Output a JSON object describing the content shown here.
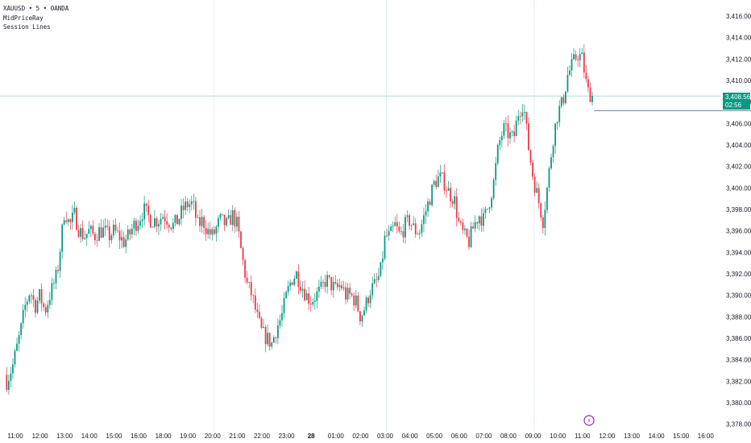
{
  "legend": {
    "symbol_line": "XAUUSD • 5 • OANDA",
    "indicator_1": "MidPriceRay",
    "indicator_2": "Session Lines"
  },
  "price_badge": {
    "price": "3,408.560",
    "countdown": "02:56"
  },
  "colors": {
    "up": "#089981",
    "down": "#f23645",
    "badge": "#089981",
    "crosshair": "#9fd8cf",
    "session_line": "#b7d5e8",
    "event_marker": "#9c27b0"
  },
  "event_marker": {
    "icon": "lightning-icon"
  },
  "chart_data": {
    "type": "candlestick",
    "y_axis": {
      "range": [
        3377,
        3417.5
      ],
      "ticks": [
        "3,378.000",
        "3,380.000",
        "3,382.000",
        "3,384.000",
        "3,386.000",
        "3,388.000",
        "3,390.000",
        "3,392.000",
        "3,394.000",
        "3,396.000",
        "3,398.000",
        "3,400.000",
        "3,402.000",
        "3,404.000",
        "3,406.000",
        "3,408.000",
        "3,410.000",
        "3,412.000",
        "3,414.000",
        "3,416.000"
      ]
    },
    "x_axis": {
      "ticks": [
        {
          "label": "11:00",
          "hour": 0,
          "bold": false
        },
        {
          "label": "12:00",
          "hour": 1,
          "bold": false
        },
        {
          "label": "13:00",
          "hour": 2,
          "bold": false
        },
        {
          "label": "14:00",
          "hour": 3,
          "bold": false
        },
        {
          "label": "15:00",
          "hour": 4,
          "bold": false
        },
        {
          "label": "16:00",
          "hour": 5,
          "bold": false
        },
        {
          "label": "18:00",
          "hour": 6,
          "bold": false
        },
        {
          "label": "19:00",
          "hour": 7,
          "bold": false
        },
        {
          "label": "20:00",
          "hour": 8,
          "bold": false
        },
        {
          "label": "21:00",
          "hour": 9,
          "bold": false
        },
        {
          "label": "22:00",
          "hour": 10,
          "bold": false
        },
        {
          "label": "23:00",
          "hour": 11,
          "bold": false
        },
        {
          "label": "28",
          "hour": 12,
          "bold": true
        },
        {
          "label": "01:00",
          "hour": 13,
          "bold": false
        },
        {
          "label": "02:00",
          "hour": 14,
          "bold": false
        },
        {
          "label": "03:00",
          "hour": 15,
          "bold": false
        },
        {
          "label": "04:00",
          "hour": 16,
          "bold": false
        },
        {
          "label": "05:00",
          "hour": 17,
          "bold": false
        },
        {
          "label": "06:00",
          "hour": 18,
          "bold": false
        },
        {
          "label": "07:00",
          "hour": 19,
          "bold": false
        },
        {
          "label": "08:00",
          "hour": 20,
          "bold": false
        },
        {
          "label": "09:00",
          "hour": 21,
          "bold": false
        },
        {
          "label": "10:00",
          "hour": 22,
          "bold": false
        },
        {
          "label": "11:00",
          "hour": 23,
          "bold": false
        },
        {
          "label": "12:00",
          "hour": 24,
          "bold": false
        },
        {
          "label": "13:00",
          "hour": 25,
          "bold": false
        },
        {
          "label": "14:00",
          "hour": 26,
          "bold": false
        },
        {
          "label": "15:00",
          "hour": 27,
          "bold": false
        },
        {
          "label": "16:00",
          "hour": 28,
          "bold": false
        }
      ]
    },
    "session_lines_hours": [
      8,
      15,
      21
    ],
    "last_price": 3408.56,
    "mid_price_ray": 3407.2,
    "ohlc_anchor_hours": [
      -0.35,
      -0.1,
      0.2,
      0.4,
      0.6,
      0.8,
      1.0,
      1.2,
      1.4,
      1.7,
      2.0,
      2.2,
      2.4,
      2.6,
      2.8,
      3.0,
      3.2,
      3.4,
      3.6,
      3.8,
      4.0,
      4.2,
      4.4,
      4.6,
      4.8,
      5.0,
      5.2,
      5.5,
      5.8,
      6.0,
      6.2,
      6.4,
      6.6,
      6.8,
      7.0,
      7.2,
      7.4,
      7.6,
      7.8,
      8.0,
      8.3,
      8.6,
      8.8,
      9.0,
      9.2,
      9.4,
      9.6,
      9.8,
      10.0,
      10.2,
      10.4,
      10.6,
      10.8,
      11.0,
      11.2,
      11.4,
      11.6,
      11.8,
      12.0,
      12.2,
      12.4,
      12.6,
      12.8,
      13.0,
      13.2,
      13.4,
      13.6,
      13.8,
      14.0,
      14.2,
      14.4,
      14.6,
      14.8,
      15.0,
      15.2,
      15.4,
      15.6,
      15.8,
      16.0,
      16.2,
      16.4,
      16.6,
      16.8,
      17.0,
      17.2,
      17.4,
      17.6,
      17.8,
      18.0,
      18.2,
      18.4,
      18.6,
      18.8,
      19.0,
      19.2,
      19.4,
      19.6,
      19.8,
      20.0,
      20.2,
      20.4,
      20.6,
      20.8,
      21.0,
      21.2,
      21.4,
      21.6,
      21.8,
      22.0,
      22.2,
      22.4,
      22.6,
      22.8,
      23.0,
      23.2,
      23.4
    ],
    "ohlc_anchor_close": [
      3382.0,
      3383.5,
      3386.5,
      3389.0,
      3390.5,
      3389.0,
      3390.0,
      3388.5,
      3390.0,
      3392.0,
      3398.0,
      3396.5,
      3397.5,
      3396.0,
      3395.5,
      3396.0,
      3395.5,
      3396.0,
      3396.0,
      3395.5,
      3396.0,
      3395.5,
      3395.0,
      3395.5,
      3396.5,
      3397.0,
      3398.0,
      3397.0,
      3397.0,
      3397.5,
      3397.0,
      3396.5,
      3397.0,
      3398.0,
      3398.5,
      3398.5,
      3396.5,
      3397.0,
      3396.0,
      3395.5,
      3397.0,
      3396.5,
      3397.5,
      3396.5,
      3393.5,
      3391.0,
      3390.0,
      3388.0,
      3386.5,
      3386.0,
      3385.5,
      3387.0,
      3388.0,
      3390.0,
      3391.5,
      3392.0,
      3391.0,
      3390.0,
      3389.5,
      3390.0,
      3390.5,
      3391.5,
      3391.0,
      3390.5,
      3391.0,
      3390.0,
      3390.0,
      3389.5,
      3388.0,
      3389.0,
      3390.5,
      3391.0,
      3392.0,
      3395.5,
      3395.5,
      3396.5,
      3395.5,
      3396.5,
      3397.0,
      3396.0,
      3396.0,
      3397.5,
      3399.0,
      3400.5,
      3401.0,
      3400.5,
      3399.5,
      3399.0,
      3396.5,
      3395.5,
      3395.0,
      3396.5,
      3397.5,
      3397.0,
      3398.5,
      3400.5,
      3404.0,
      3405.5,
      3405.0,
      3404.5,
      3407.0,
      3408.0,
      3404.0,
      3401.0,
      3399.0,
      3397.0,
      3400.5,
      3404.5,
      3407.0,
      3408.0,
      3410.5,
      3411.5,
      3412.5,
      3412.0,
      3409.0,
      3408.6
    ]
  }
}
